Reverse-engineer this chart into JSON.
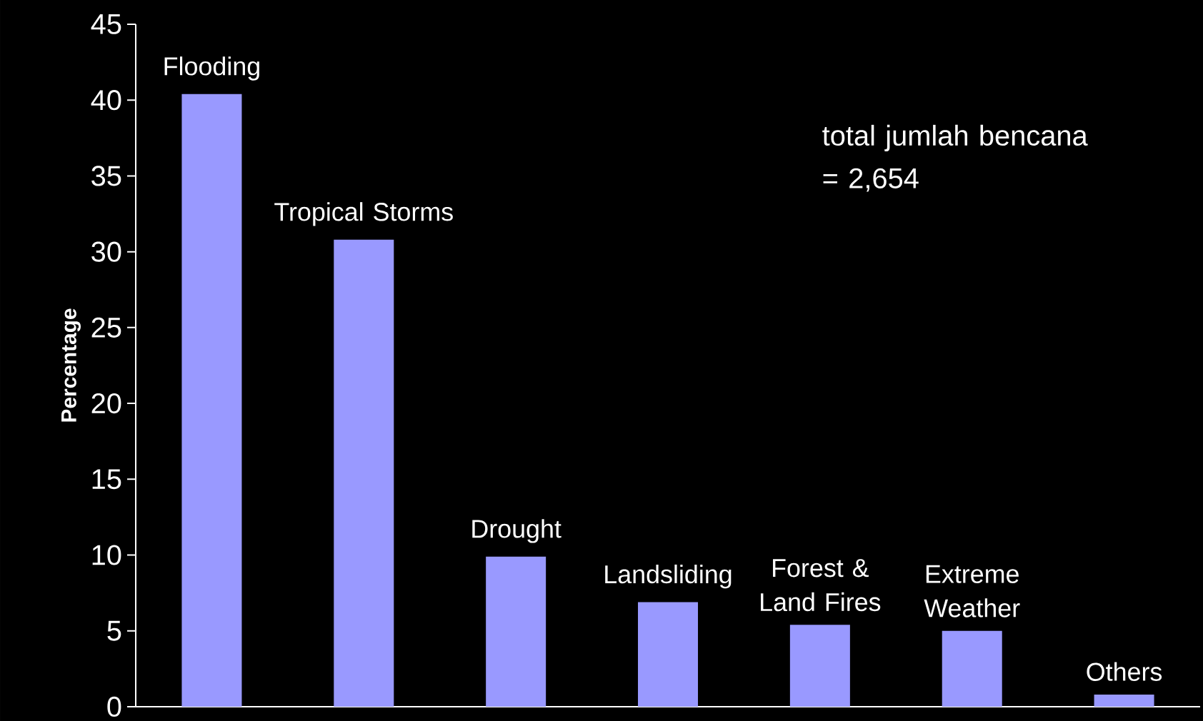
{
  "chart_data": {
    "type": "bar",
    "ylabel": "Percentage",
    "categories": [
      "Flooding",
      "Tropical Storms",
      "Drought",
      "Landsliding",
      "Forest & Land Fires",
      "Extreme Weather",
      "Others"
    ],
    "values": [
      40.4,
      30.8,
      9.9,
      6.9,
      5.4,
      5.0,
      0.8
    ],
    "color": "#9999ff",
    "ylim": [
      0,
      45
    ],
    "yticks": [
      0,
      5,
      10,
      15,
      20,
      25,
      30,
      35,
      40,
      45
    ],
    "annotations": [
      "total jumlah bencana = 2,654"
    ]
  }
}
